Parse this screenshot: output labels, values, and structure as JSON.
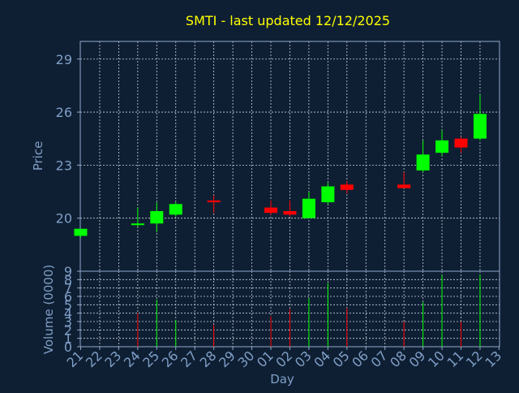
{
  "chart_data": {
    "type": "candlestick",
    "title": "SMTI - last updated 12/12/2025",
    "xlabel": "Day",
    "x_tick_labels": [
      "21",
      "22",
      "23",
      "24",
      "25",
      "26",
      "27",
      "28",
      "29",
      "30",
      "01",
      "02",
      "03",
      "04",
      "05",
      "06",
      "07",
      "08",
      "09",
      "10",
      "11",
      "12",
      "13"
    ],
    "price_panel": {
      "ylabel": "Price",
      "ylim": [
        17,
        30
      ],
      "yticks": [
        20,
        23,
        26,
        29
      ],
      "grid": true,
      "candles": [
        {
          "x": "21",
          "open": 19.0,
          "high": 19.4,
          "low": 18.9,
          "close": 19.4
        },
        {
          "x": "24",
          "open": 19.7,
          "high": 20.6,
          "low": 19.5,
          "close": 19.7
        },
        {
          "x": "25",
          "open": 19.7,
          "high": 20.9,
          "low": 19.2,
          "close": 20.4
        },
        {
          "x": "26",
          "open": 20.2,
          "high": 20.9,
          "low": 20.1,
          "close": 20.8
        },
        {
          "x": "28",
          "open": 21.0,
          "high": 21.3,
          "low": 20.3,
          "close": 20.9
        },
        {
          "x": "01",
          "open": 20.6,
          "high": 21.0,
          "low": 20.2,
          "close": 20.3
        },
        {
          "x": "02",
          "open": 20.4,
          "high": 21.0,
          "low": 20.1,
          "close": 20.2
        },
        {
          "x": "03",
          "open": 20.0,
          "high": 21.5,
          "low": 20.0,
          "close": 21.1
        },
        {
          "x": "04",
          "open": 20.9,
          "high": 22.0,
          "low": 20.8,
          "close": 21.8
        },
        {
          "x": "05",
          "open": 21.9,
          "high": 22.1,
          "low": 21.4,
          "close": 21.6
        },
        {
          "x": "08",
          "open": 21.9,
          "high": 22.6,
          "low": 21.7,
          "close": 21.7
        },
        {
          "x": "09",
          "open": 22.7,
          "high": 24.4,
          "low": 22.6,
          "close": 23.6
        },
        {
          "x": "10",
          "open": 23.7,
          "high": 25.0,
          "low": 23.5,
          "close": 24.4
        },
        {
          "x": "11",
          "open": 24.5,
          "high": 24.6,
          "low": 23.7,
          "close": 24.0
        },
        {
          "x": "12",
          "open": 24.5,
          "high": 27.0,
          "low": 24.4,
          "close": 25.9
        }
      ]
    },
    "volume_panel": {
      "ylabel": "Volume (0000)",
      "ylim": [
        0,
        9
      ],
      "yticks": [
        0,
        1,
        2,
        3,
        4,
        5,
        6,
        7,
        8,
        9
      ],
      "ytick_labels": [
        "0",
        "1",
        "2",
        "3",
        "4",
        "5",
        "6",
        "7",
        "8",
        "9"
      ],
      "bars": [
        {
          "x": "24",
          "value": 4.0,
          "direction": "down"
        },
        {
          "x": "25",
          "value": 5.6,
          "direction": "up"
        },
        {
          "x": "26",
          "value": 3.2,
          "direction": "up"
        },
        {
          "x": "28",
          "value": 2.6,
          "direction": "down"
        },
        {
          "x": "01",
          "value": 3.6,
          "direction": "down"
        },
        {
          "x": "02",
          "value": 4.5,
          "direction": "down"
        },
        {
          "x": "03",
          "value": 5.8,
          "direction": "up"
        },
        {
          "x": "04",
          "value": 7.6,
          "direction": "up"
        },
        {
          "x": "05",
          "value": 4.6,
          "direction": "down"
        },
        {
          "x": "08",
          "value": 3.0,
          "direction": "down"
        },
        {
          "x": "09",
          "value": 5.3,
          "direction": "up"
        },
        {
          "x": "10",
          "value": 8.6,
          "direction": "up"
        },
        {
          "x": "11",
          "value": 3.0,
          "direction": "down"
        },
        {
          "x": "12",
          "value": 8.6,
          "direction": "up"
        }
      ]
    },
    "colors": {
      "background": "#0f1f33",
      "title": "#ffff00",
      "axis_text": "#7f9fc7",
      "frame": "#8fa9cc",
      "grid": "#c8d2e0",
      "up": "#00ff00",
      "down": "#ff0000"
    }
  }
}
